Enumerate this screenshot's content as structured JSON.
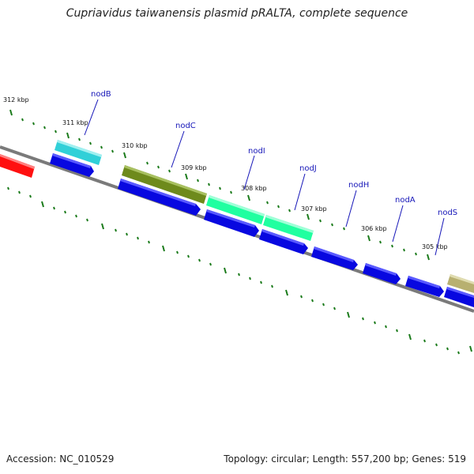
{
  "title": "Cupriavidus taiwanensis plasmid pRALTA, complete sequence",
  "footer": {
    "accession": "Accession: NC_010529",
    "summary": "Topology: circular; Length: 557,200 bp; Genes: 519"
  },
  "colors": {
    "backbone": "#7a7a7a",
    "cds": "#0808e0",
    "tick": "#1a7a1a",
    "label": "#1515b8",
    "red_feature": "#ff1010",
    "cyan_feature": "#30d0d8",
    "olive_feature": "#6e8a1c",
    "green_feature": "#20ffa0",
    "khaki_feature": "#b8b070"
  },
  "ruler": {
    "unit": "kbp",
    "labels": [
      "312 kbp",
      "311 kbp",
      "310 kbp",
      "309 kbp",
      "308 kbp",
      "307 kbp",
      "306 kbp",
      "305 kbp"
    ]
  },
  "genes": [
    "nodB",
    "nodC",
    "nodI",
    "nodJ",
    "nodH",
    "nodA",
    "nodS"
  ]
}
